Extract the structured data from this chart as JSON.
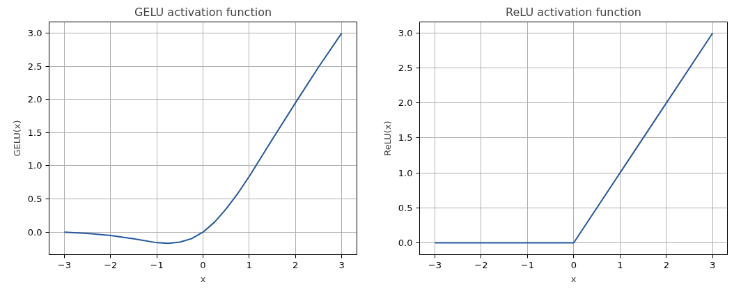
{
  "chart_data": [
    {
      "type": "line",
      "title": "GELU activation function",
      "xlabel": "x",
      "ylabel": "GELU(x)",
      "x": [
        -3,
        -2.5,
        -2,
        -1.5,
        -1,
        -0.75,
        -0.5,
        -0.25,
        0,
        0.25,
        0.5,
        0.75,
        1,
        1.5,
        2,
        2.5,
        3
      ],
      "series": [
        {
          "color": "#25589e",
          "values": [
            0.0,
            -0.02,
            -0.05,
            -0.1,
            -0.16,
            -0.17,
            -0.15,
            -0.1,
            0.0,
            0.15,
            0.35,
            0.58,
            0.84,
            1.4,
            1.95,
            2.49,
            3.0
          ]
        }
      ],
      "xlim": [
        -3.33,
        3.33
      ],
      "ylim": [
        -0.34,
        3.17
      ],
      "xticks": [
        {
          "value": -3,
          "label": "−3"
        },
        {
          "value": -2,
          "label": "−2"
        },
        {
          "value": -1,
          "label": "−1"
        },
        0,
        1,
        2,
        3
      ],
      "yticks": [
        {
          "value": 0,
          "label": "0.0"
        },
        0.5,
        {
          "value": 1,
          "label": "1.0"
        },
        1.5,
        {
          "value": 2,
          "label": "2.0"
        },
        2.5,
        {
          "value": 3,
          "label": "3.0"
        }
      ],
      "grid": true
    },
    {
      "type": "line",
      "title": "ReLU activation function",
      "xlabel": "x",
      "ylabel": "ReLU(x)",
      "x": [
        -3,
        -2,
        -1,
        0,
        1,
        2,
        3
      ],
      "series": [
        {
          "color": "#25589e",
          "values": [
            0,
            0,
            0,
            0,
            1,
            2,
            3
          ]
        }
      ],
      "xlim": [
        -3.33,
        3.32
      ],
      "ylim": [
        -0.17,
        3.16
      ],
      "xticks": [
        {
          "value": -3,
          "label": "−3"
        },
        {
          "value": -2,
          "label": "−2"
        },
        {
          "value": -1,
          "label": "−1"
        },
        0,
        1,
        2,
        3
      ],
      "yticks": [
        {
          "value": 0,
          "label": "0.0"
        },
        0.5,
        {
          "value": 1,
          "label": "1.0"
        },
        1.5,
        {
          "value": 2,
          "label": "2.0"
        },
        2.5,
        {
          "value": 3,
          "label": "3.0"
        }
      ],
      "grid": true
    }
  ]
}
